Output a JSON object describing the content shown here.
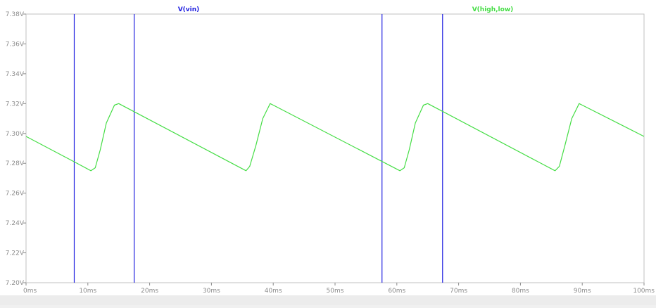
{
  "chart_data": {
    "type": "line",
    "xlabel": "",
    "ylabel": "",
    "xlim": [
      0,
      100
    ],
    "ylim": [
      7.2,
      7.38
    ],
    "grid": false,
    "legend": "top",
    "x_ticks": [
      0,
      10,
      20,
      30,
      40,
      50,
      60,
      70,
      80,
      90,
      100
    ],
    "x_tick_labels": [
      "0ms",
      "10ms",
      "20ms",
      "30ms",
      "40ms",
      "50ms",
      "60ms",
      "70ms",
      "80ms",
      "90ms",
      "100ms"
    ],
    "y_ticks": [
      7.2,
      7.22,
      7.24,
      7.26,
      7.28,
      7.3,
      7.32,
      7.34,
      7.36,
      7.38
    ],
    "y_tick_labels": [
      "7.20V",
      "7.22V",
      "7.24V",
      "7.26V",
      "7.28V",
      "7.30V",
      "7.32V",
      "7.34V",
      "7.36V",
      "7.38V"
    ],
    "series": [
      {
        "name": "V(vin)",
        "color": "#2020e0",
        "x_units": "ms",
        "y_units": "V",
        "x_edges": [
          7.8,
          17.5,
          57.6,
          67.4
        ],
        "note_values": "vertical transitions exceed plotted range"
      },
      {
        "name": "V(high,low)",
        "color": "#44dd44",
        "x_units": "ms",
        "y_units": "V",
        "x": [
          0,
          7.8,
          10.5,
          11.2,
          12.0,
          13.0,
          14.3,
          15.0,
          35.6,
          36.2,
          37.2,
          38.3,
          39.5,
          40.0,
          60.5,
          61.2,
          62.0,
          63.0,
          64.3,
          65.0,
          85.6,
          86.3,
          87.2,
          88.3,
          89.5,
          90.0,
          100
        ],
        "y": [
          7.298,
          7.281,
          7.275,
          7.277,
          7.289,
          7.307,
          7.319,
          7.32,
          7.275,
          7.278,
          7.292,
          7.31,
          7.32,
          7.319,
          7.275,
          7.277,
          7.289,
          7.307,
          7.319,
          7.32,
          7.275,
          7.278,
          7.292,
          7.31,
          7.32,
          7.319,
          7.298
        ]
      }
    ]
  }
}
